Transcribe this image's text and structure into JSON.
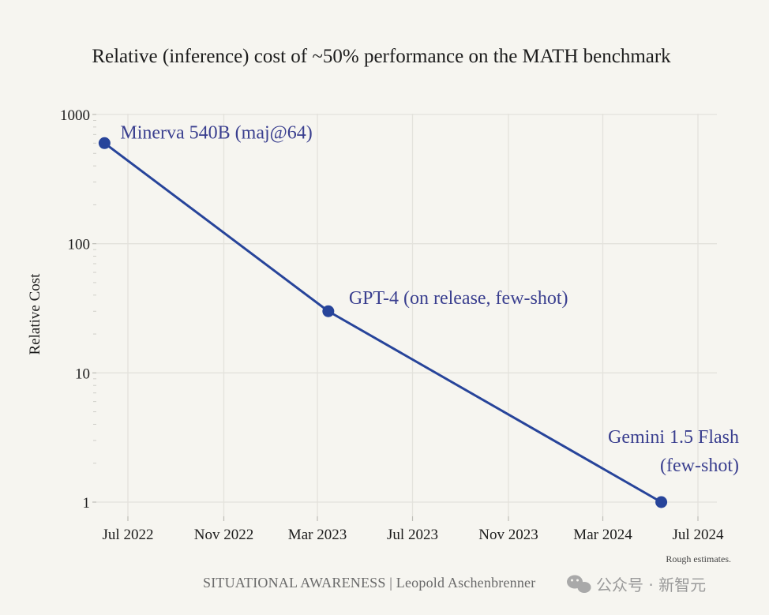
{
  "chart_data": {
    "type": "line",
    "title": "Relative (inference) cost of ~50% performance on the MATH benchmark",
    "xlabel": "",
    "ylabel": "Relative Cost",
    "yscale": "log",
    "ylim": [
      0.8,
      1000
    ],
    "xlim": [
      "2022-06-01",
      "2024-07-15"
    ],
    "grid": true,
    "x_ticks": [
      {
        "date": "2022-07-01",
        "label": "Jul 2022"
      },
      {
        "date": "2022-11-01",
        "label": "Nov 2022"
      },
      {
        "date": "2023-03-01",
        "label": "Mar 2023"
      },
      {
        "date": "2023-07-01",
        "label": "Jul 2023"
      },
      {
        "date": "2023-11-01",
        "label": "Nov 2023"
      },
      {
        "date": "2024-03-01",
        "label": "Mar 2024"
      },
      {
        "date": "2024-07-01",
        "label": "Jul 2024"
      }
    ],
    "y_ticks": [
      {
        "value": 1,
        "label": "1"
      },
      {
        "value": 10,
        "label": "10"
      },
      {
        "value": 100,
        "label": "100"
      },
      {
        "value": 1000,
        "label": "1000"
      }
    ],
    "series": [
      {
        "color": "#27449a",
        "points": [
          {
            "x": "2022-06-01",
            "y": 600,
            "label": [
              "Minerva 540B (maj@64)"
            ]
          },
          {
            "x": "2023-03-15",
            "y": 30,
            "label": [
              "GPT-4 (on release, few-shot)"
            ]
          },
          {
            "x": "2024-05-15",
            "y": 1,
            "label": [
              "Gemini 1.5 Flash",
              "(few-shot)"
            ]
          }
        ]
      }
    ],
    "annotation": "Rough estimates."
  },
  "footer": {
    "credit": "SITUATIONAL AWARENESS | Leopold Aschenbrenner",
    "watermark": "公众号 · 新智元"
  },
  "colors": {
    "line": "#27449a",
    "label": "#3a3f8f",
    "grid": "#e3e2dc",
    "background": "#f6f5f0"
  }
}
